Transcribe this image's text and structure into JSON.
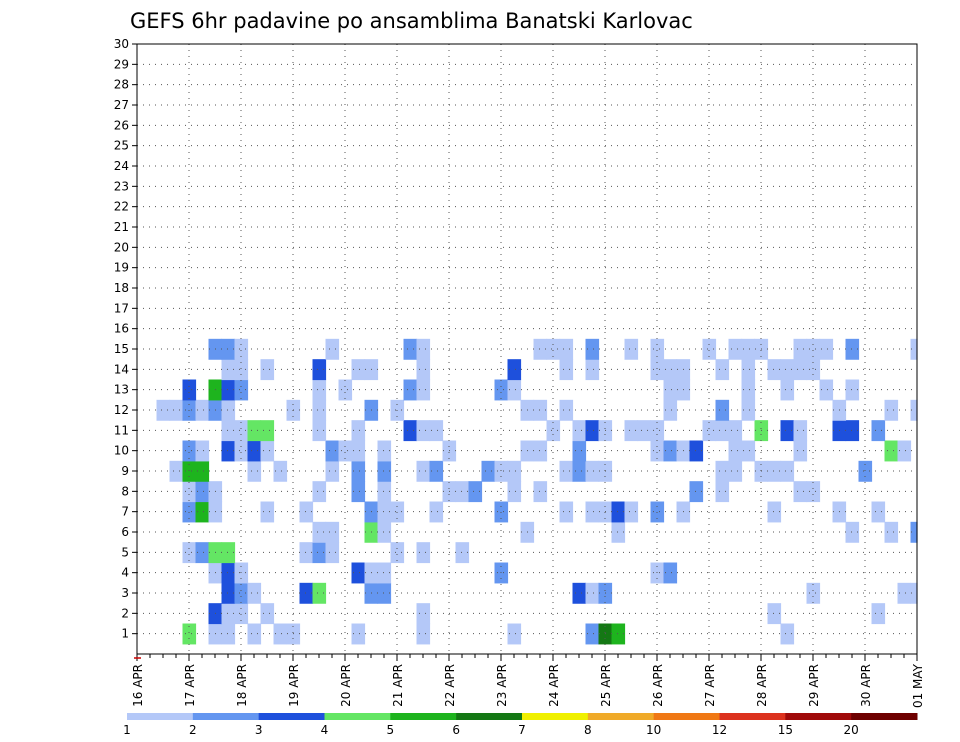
{
  "chart_data": {
    "type": "heatmap",
    "title": "GEFS 6hr padavine po ansamblima Banatski Karlovac",
    "xlabel": "",
    "ylabel": "",
    "x_tick_labels": [
      "16 APR",
      "17 APR",
      "18 APR",
      "19 APR",
      "20 APR",
      "21 APR",
      "22 APR",
      "23 APR",
      "24 APR",
      "25 APR",
      "26 APR",
      "27 APR",
      "28 APR",
      "29 APR",
      "30 APR",
      "01 MAY"
    ],
    "y_range": [
      0,
      30
    ],
    "y_ticks": [
      1,
      2,
      3,
      4,
      5,
      6,
      7,
      8,
      9,
      10,
      11,
      12,
      13,
      14,
      15,
      16,
      17,
      18,
      19,
      20,
      21,
      22,
      23,
      24,
      25,
      26,
      27,
      28,
      29,
      30
    ],
    "time_steps": 61,
    "step_hours": 6,
    "grid": true,
    "legend_placement": "bottom",
    "legend": {
      "levels": [
        "1",
        "2",
        "3",
        "4",
        "5",
        "6",
        "7",
        "8",
        "10",
        "12",
        "15",
        "20"
      ],
      "colors": [
        "#b4c8f8",
        "#6496f0",
        "#1e50dc",
        "#64e664",
        "#1eb41e",
        "#147814",
        "#f0f000",
        "#f0aa28",
        "#f07814",
        "#dc321e",
        "#a00a0a",
        "#6e0000"
      ]
    },
    "cells": [
      [
        4,
        1,
        4
      ],
      [
        6,
        1,
        1
      ],
      [
        7,
        1,
        1
      ],
      [
        9,
        1,
        1
      ],
      [
        11,
        1,
        1
      ],
      [
        12,
        1,
        1
      ],
      [
        17,
        1,
        1
      ],
      [
        22,
        1,
        1
      ],
      [
        29,
        1,
        1
      ],
      [
        35,
        1,
        2
      ],
      [
        36,
        1,
        6
      ],
      [
        37,
        1,
        5
      ],
      [
        50,
        1,
        1
      ],
      [
        6,
        2,
        3
      ],
      [
        7,
        2,
        1
      ],
      [
        8,
        2,
        1
      ],
      [
        10,
        2,
        1
      ],
      [
        22,
        2,
        1
      ],
      [
        49,
        2,
        1
      ],
      [
        57,
        2,
        1
      ],
      [
        7,
        3,
        3
      ],
      [
        8,
        3,
        2
      ],
      [
        9,
        3,
        1
      ],
      [
        13,
        3,
        3
      ],
      [
        14,
        3,
        4
      ],
      [
        18,
        3,
        2
      ],
      [
        19,
        3,
        2
      ],
      [
        34,
        3,
        3
      ],
      [
        35,
        3,
        1
      ],
      [
        36,
        3,
        2
      ],
      [
        52,
        3,
        1
      ],
      [
        59,
        3,
        1
      ],
      [
        60,
        3,
        1
      ],
      [
        6,
        4,
        1
      ],
      [
        7,
        4,
        3
      ],
      [
        8,
        4,
        1
      ],
      [
        17,
        4,
        3
      ],
      [
        18,
        4,
        1
      ],
      [
        19,
        4,
        1
      ],
      [
        28,
        4,
        2
      ],
      [
        40,
        4,
        1
      ],
      [
        41,
        4,
        2
      ],
      [
        4,
        5,
        1
      ],
      [
        5,
        5,
        2
      ],
      [
        6,
        5,
        4
      ],
      [
        7,
        5,
        4
      ],
      [
        13,
        5,
        1
      ],
      [
        14,
        5,
        2
      ],
      [
        15,
        5,
        1
      ],
      [
        20,
        5,
        1
      ],
      [
        22,
        5,
        1
      ],
      [
        25,
        5,
        1
      ],
      [
        14,
        6,
        1
      ],
      [
        15,
        6,
        1
      ],
      [
        18,
        6,
        4
      ],
      [
        19,
        6,
        1
      ],
      [
        30,
        6,
        1
      ],
      [
        37,
        6,
        1
      ],
      [
        55,
        6,
        1
      ],
      [
        58,
        6,
        1
      ],
      [
        60,
        6,
        2
      ],
      [
        4,
        7,
        2
      ],
      [
        5,
        7,
        5
      ],
      [
        6,
        7,
        1
      ],
      [
        10,
        7,
        1
      ],
      [
        13,
        7,
        1
      ],
      [
        18,
        7,
        2
      ],
      [
        19,
        7,
        1
      ],
      [
        20,
        7,
        1
      ],
      [
        23,
        7,
        1
      ],
      [
        28,
        7,
        2
      ],
      [
        33,
        7,
        1
      ],
      [
        35,
        7,
        1
      ],
      [
        36,
        7,
        1
      ],
      [
        37,
        7,
        3
      ],
      [
        38,
        7,
        1
      ],
      [
        40,
        7,
        2
      ],
      [
        42,
        7,
        1
      ],
      [
        49,
        7,
        1
      ],
      [
        54,
        7,
        1
      ],
      [
        57,
        7,
        1
      ],
      [
        4,
        8,
        1
      ],
      [
        5,
        8,
        2
      ],
      [
        6,
        8,
        1
      ],
      [
        14,
        8,
        1
      ],
      [
        17,
        8,
        2
      ],
      [
        19,
        8,
        1
      ],
      [
        24,
        8,
        1
      ],
      [
        25,
        8,
        1
      ],
      [
        26,
        8,
        2
      ],
      [
        29,
        8,
        1
      ],
      [
        31,
        8,
        1
      ],
      [
        43,
        8,
        2
      ],
      [
        45,
        8,
        1
      ],
      [
        51,
        8,
        1
      ],
      [
        52,
        8,
        1
      ],
      [
        3,
        9,
        1
      ],
      [
        4,
        9,
        5
      ],
      [
        5,
        9,
        5
      ],
      [
        9,
        9,
        1
      ],
      [
        11,
        9,
        1
      ],
      [
        15,
        9,
        1
      ],
      [
        17,
        9,
        2
      ],
      [
        19,
        9,
        2
      ],
      [
        22,
        9,
        1
      ],
      [
        23,
        9,
        2
      ],
      [
        27,
        9,
        2
      ],
      [
        28,
        9,
        1
      ],
      [
        29,
        9,
        1
      ],
      [
        33,
        9,
        1
      ],
      [
        34,
        9,
        2
      ],
      [
        35,
        9,
        1
      ],
      [
        36,
        9,
        1
      ],
      [
        45,
        9,
        1
      ],
      [
        46,
        9,
        1
      ],
      [
        48,
        9,
        1
      ],
      [
        49,
        9,
        1
      ],
      [
        50,
        9,
        1
      ],
      [
        56,
        9,
        2
      ],
      [
        4,
        10,
        2
      ],
      [
        5,
        10,
        1
      ],
      [
        7,
        10,
        3
      ],
      [
        8,
        10,
        1
      ],
      [
        9,
        10,
        3
      ],
      [
        10,
        10,
        1
      ],
      [
        15,
        10,
        2
      ],
      [
        16,
        10,
        1
      ],
      [
        17,
        10,
        1
      ],
      [
        19,
        10,
        1
      ],
      [
        24,
        10,
        1
      ],
      [
        30,
        10,
        1
      ],
      [
        31,
        10,
        1
      ],
      [
        34,
        10,
        2
      ],
      [
        40,
        10,
        1
      ],
      [
        41,
        10,
        2
      ],
      [
        42,
        10,
        1
      ],
      [
        43,
        10,
        3
      ],
      [
        46,
        10,
        1
      ],
      [
        47,
        10,
        1
      ],
      [
        51,
        10,
        1
      ],
      [
        58,
        10,
        4
      ],
      [
        59,
        10,
        1
      ],
      [
        7,
        11,
        1
      ],
      [
        8,
        11,
        1
      ],
      [
        9,
        11,
        4
      ],
      [
        10,
        11,
        4
      ],
      [
        14,
        11,
        1
      ],
      [
        17,
        11,
        1
      ],
      [
        21,
        11,
        3
      ],
      [
        22,
        11,
        1
      ],
      [
        23,
        11,
        1
      ],
      [
        32,
        11,
        1
      ],
      [
        34,
        11,
        1
      ],
      [
        35,
        11,
        3
      ],
      [
        36,
        11,
        1
      ],
      [
        38,
        11,
        1
      ],
      [
        39,
        11,
        1
      ],
      [
        40,
        11,
        1
      ],
      [
        44,
        11,
        1
      ],
      [
        45,
        11,
        1
      ],
      [
        46,
        11,
        1
      ],
      [
        48,
        11,
        4
      ],
      [
        50,
        11,
        3
      ],
      [
        51,
        11,
        1
      ],
      [
        54,
        11,
        3
      ],
      [
        55,
        11,
        3
      ],
      [
        57,
        11,
        2
      ],
      [
        2,
        12,
        1
      ],
      [
        3,
        12,
        1
      ],
      [
        4,
        12,
        2
      ],
      [
        5,
        12,
        1
      ],
      [
        6,
        12,
        2
      ],
      [
        7,
        12,
        1
      ],
      [
        12,
        12,
        1
      ],
      [
        14,
        12,
        1
      ],
      [
        18,
        12,
        2
      ],
      [
        20,
        12,
        1
      ],
      [
        30,
        12,
        1
      ],
      [
        31,
        12,
        1
      ],
      [
        33,
        12,
        1
      ],
      [
        41,
        12,
        1
      ],
      [
        45,
        12,
        2
      ],
      [
        47,
        12,
        1
      ],
      [
        54,
        12,
        1
      ],
      [
        58,
        12,
        1
      ],
      [
        60,
        12,
        1
      ],
      [
        4,
        13,
        3
      ],
      [
        6,
        13,
        5
      ],
      [
        7,
        13,
        3
      ],
      [
        8,
        13,
        2
      ],
      [
        14,
        13,
        1
      ],
      [
        16,
        13,
        1
      ],
      [
        21,
        13,
        2
      ],
      [
        22,
        13,
        1
      ],
      [
        28,
        13,
        2
      ],
      [
        29,
        13,
        1
      ],
      [
        41,
        13,
        1
      ],
      [
        42,
        13,
        1
      ],
      [
        47,
        13,
        1
      ],
      [
        50,
        13,
        1
      ],
      [
        53,
        13,
        1
      ],
      [
        55,
        13,
        1
      ],
      [
        7,
        14,
        1
      ],
      [
        8,
        14,
        1
      ],
      [
        10,
        14,
        1
      ],
      [
        14,
        14,
        3
      ],
      [
        17,
        14,
        1
      ],
      [
        18,
        14,
        1
      ],
      [
        22,
        14,
        1
      ],
      [
        29,
        14,
        3
      ],
      [
        33,
        14,
        1
      ],
      [
        35,
        14,
        1
      ],
      [
        40,
        14,
        1
      ],
      [
        41,
        14,
        1
      ],
      [
        42,
        14,
        1
      ],
      [
        45,
        14,
        1
      ],
      [
        47,
        14,
        1
      ],
      [
        49,
        14,
        1
      ],
      [
        50,
        14,
        1
      ],
      [
        51,
        14,
        1
      ],
      [
        52,
        14,
        1
      ],
      [
        6,
        15,
        2
      ],
      [
        7,
        15,
        2
      ],
      [
        8,
        15,
        1
      ],
      [
        15,
        15,
        1
      ],
      [
        21,
        15,
        2
      ],
      [
        22,
        15,
        1
      ],
      [
        31,
        15,
        1
      ],
      [
        32,
        15,
        1
      ],
      [
        33,
        15,
        1
      ],
      [
        35,
        15,
        2
      ],
      [
        38,
        15,
        1
      ],
      [
        40,
        15,
        1
      ],
      [
        44,
        15,
        1
      ],
      [
        46,
        15,
        1
      ],
      [
        47,
        15,
        1
      ],
      [
        48,
        15,
        1
      ],
      [
        51,
        15,
        1
      ],
      [
        52,
        15,
        1
      ],
      [
        53,
        15,
        1
      ],
      [
        55,
        15,
        2
      ],
      [
        60,
        15,
        1
      ]
    ]
  }
}
